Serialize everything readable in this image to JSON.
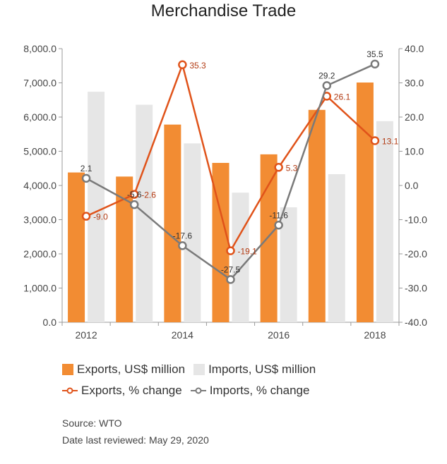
{
  "chart_data": {
    "type": "bar",
    "title": "Merchandise Trade",
    "x_ticks": [
      "2012",
      "2014",
      "2016",
      "2018"
    ],
    "categories": [
      "2012",
      "2013",
      "2014",
      "2015",
      "2016",
      "2017",
      "2018"
    ],
    "ylim": [
      0,
      8000
    ],
    "yticks": [
      "0.0",
      "1,000.0",
      "2,000.0",
      "3,000.0",
      "4,000.0",
      "5,000.0",
      "6,000.0",
      "7,000.0",
      "8,000.0"
    ],
    "y2lim": [
      -40,
      40
    ],
    "y2ticks": [
      "-40.0",
      "-30.0",
      "-20.0",
      "-10.0",
      "0.0",
      "10.0",
      "20.0",
      "30.0",
      "40.0"
    ],
    "grid": false,
    "legend_position": "bottom",
    "series": [
      {
        "name": "Exports, US$ million",
        "kind": "bar",
        "axis": "left",
        "color": "#f28c33",
        "values": [
          4380,
          4260,
          5780,
          4660,
          4910,
          6210,
          7010
        ]
      },
      {
        "name": "Imports, US$ million",
        "kind": "bar",
        "axis": "left",
        "color": "#e6e6e6",
        "values": [
          6740,
          6360,
          5230,
          3790,
          3360,
          4330,
          5880
        ]
      },
      {
        "name": "Exports, % change",
        "kind": "line",
        "axis": "right",
        "color": "#e0531a",
        "values": [
          -9.0,
          -2.6,
          35.3,
          -19.1,
          5.3,
          26.1,
          13.1
        ],
        "labels": [
          "-9.0",
          "-2.6",
          "35.3",
          "-19.1",
          "5.3",
          "26.1",
          "13.1"
        ]
      },
      {
        "name": "Imports, % change",
        "kind": "line",
        "axis": "right",
        "color": "#7a7a7a",
        "values": [
          2.1,
          -5.6,
          -17.6,
          -27.5,
          -11.6,
          29.2,
          35.5
        ],
        "labels": [
          "2.1",
          "-5.6",
          "-17.6",
          "-27.5",
          "-11.6",
          "29.2",
          "35.5"
        ]
      }
    ]
  },
  "footer": {
    "source": "Source: WTO",
    "reviewed": "Date last reviewed: May 29, 2020"
  }
}
